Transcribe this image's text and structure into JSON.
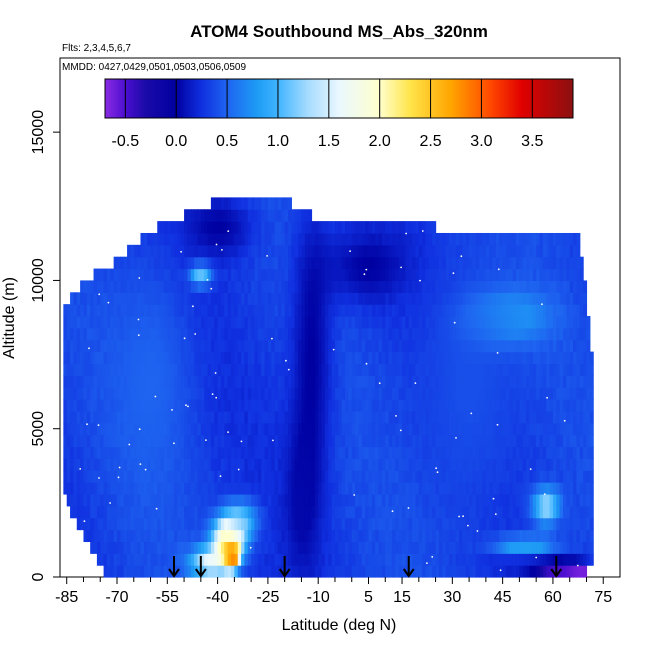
{
  "chart_data": {
    "type": "heatmap",
    "title": "ATOM4 Southbound MS_Abs_320nm",
    "flights_note": "Flts: 2,3,4,5,6,7",
    "dates_note": "MMDD: 0427,0429,0501,0503,0506,0509",
    "xlabel": "Latitude (deg N)",
    "ylabel": "Altitude (m)",
    "xlim": [
      -87,
      80
    ],
    "ylim": [
      0,
      17500
    ],
    "x_ticks": [
      -85,
      -70,
      -55,
      -40,
      -25,
      -10,
      5,
      15,
      30,
      45,
      60,
      75
    ],
    "x_minor_ticks": [
      -80,
      -75,
      -65,
      -60,
      -50,
      -45,
      -35,
      -30,
      -20,
      -15,
      -5,
      0,
      10,
      20,
      25,
      35,
      40,
      50,
      55,
      65,
      70
    ],
    "y_ticks": [
      0,
      5000,
      10000,
      15000
    ],
    "colorbar": {
      "range": [
        -0.7,
        3.9
      ],
      "ticks": [
        -0.5,
        0.0,
        0.5,
        1.0,
        1.5,
        2.0,
        2.5,
        3.0,
        3.5
      ],
      "stops": [
        {
          "v": -0.7,
          "color": "#8a2be2"
        },
        {
          "v": -0.5,
          "color": "#4b0fd0"
        },
        {
          "v": -0.3,
          "color": "#1a0aa8"
        },
        {
          "v": 0.0,
          "color": "#0000a0"
        },
        {
          "v": 0.25,
          "color": "#1030e0"
        },
        {
          "v": 0.5,
          "color": "#1e64f0"
        },
        {
          "v": 0.8,
          "color": "#1e9cf5"
        },
        {
          "v": 1.0,
          "color": "#40b4ff"
        },
        {
          "v": 1.3,
          "color": "#a8dcff"
        },
        {
          "v": 1.6,
          "color": "#eaf8ff"
        },
        {
          "v": 2.0,
          "color": "#ffffcc"
        },
        {
          "v": 2.3,
          "color": "#ffe44a"
        },
        {
          "v": 2.7,
          "color": "#ffa500"
        },
        {
          "v": 3.1,
          "color": "#ff4500"
        },
        {
          "v": 3.4,
          "color": "#e00000"
        },
        {
          "v": 3.9,
          "color": "#8b1010"
        }
      ]
    },
    "field": {
      "lat_range": [
        -86,
        72
      ],
      "profile_bounds": [
        {
          "lat": -86,
          "bottom": 3000,
          "top": 8800
        },
        {
          "lat": -80,
          "bottom": 1500,
          "top": 9800
        },
        {
          "lat": -72,
          "bottom": 0,
          "top": 10300
        },
        {
          "lat": -60,
          "bottom": 0,
          "top": 11500
        },
        {
          "lat": -50,
          "bottom": 0,
          "top": 12000
        },
        {
          "lat": -40,
          "bottom": 0,
          "top": 12500
        },
        {
          "lat": -20,
          "bottom": 0,
          "top": 12500
        },
        {
          "lat": -12,
          "bottom": 0,
          "top": 12000
        },
        {
          "lat": 0,
          "bottom": 0,
          "top": 11800
        },
        {
          "lat": 15,
          "bottom": 0,
          "top": 11800
        },
        {
          "lat": 30,
          "bottom": 0,
          "top": 11500
        },
        {
          "lat": 45,
          "bottom": 0,
          "top": 11400
        },
        {
          "lat": 60,
          "bottom": 0,
          "top": 11300
        },
        {
          "lat": 68,
          "bottom": 0,
          "top": 11200
        },
        {
          "lat": 72,
          "bottom": 700,
          "top": 7000
        }
      ],
      "features": [
        {
          "lat": -36,
          "alt": 800,
          "value": 3.6,
          "lat_width": 2.2,
          "alt_width": 450
        },
        {
          "lat": -37,
          "alt": 1300,
          "value": 2.1,
          "lat_width": 4.5,
          "alt_width": 700
        },
        {
          "lat": -42,
          "alt": 500,
          "value": 1.6,
          "lat_width": 6,
          "alt_width": 500
        },
        {
          "lat": -33,
          "alt": 1900,
          "value": 1.0,
          "lat_width": 5,
          "alt_width": 700
        },
        {
          "lat": -45,
          "alt": 10200,
          "value": 1.2,
          "lat_width": 3,
          "alt_width": 350
        },
        {
          "lat": 58,
          "alt": 2400,
          "value": 1.3,
          "lat_width": 4,
          "alt_width": 600
        },
        {
          "lat": 52,
          "alt": 1000,
          "value": 1.0,
          "lat_width": 9,
          "alt_width": 400
        },
        {
          "lat": 48,
          "alt": 8800,
          "value": 0.8,
          "lat_width": 12,
          "alt_width": 900
        },
        {
          "lat": 62,
          "alt": 200,
          "value": -0.6,
          "lat_width": 6,
          "alt_width": 250
        },
        {
          "lat": 68,
          "alt": 200,
          "value": -0.7,
          "lat_width": 3,
          "alt_width": 250
        },
        {
          "lat": 55,
          "alt": 550,
          "value": -0.1,
          "lat_width": 12,
          "alt_width": 350
        },
        {
          "lat": -12,
          "alt": 7500,
          "value": 0.0,
          "lat_width": 6,
          "alt_width": 5000
        },
        {
          "lat": -15,
          "alt": 2500,
          "value": 0.05,
          "lat_width": 5,
          "alt_width": 2500
        },
        {
          "lat": -40,
          "alt": 11800,
          "value": 0.0,
          "lat_width": 10,
          "alt_width": 1000
        },
        {
          "lat": 5,
          "alt": 10500,
          "value": 0.0,
          "lat_width": 12,
          "alt_width": 1200
        },
        {
          "lat": -60,
          "alt": 6500,
          "value": 0.5,
          "lat_width": 12,
          "alt_width": 4000
        },
        {
          "lat": 35,
          "alt": 6500,
          "value": 0.4,
          "lat_width": 15,
          "alt_width": 4500
        }
      ]
    },
    "arrows_lat": [
      -53,
      -45,
      -20,
      17,
      61
    ]
  }
}
